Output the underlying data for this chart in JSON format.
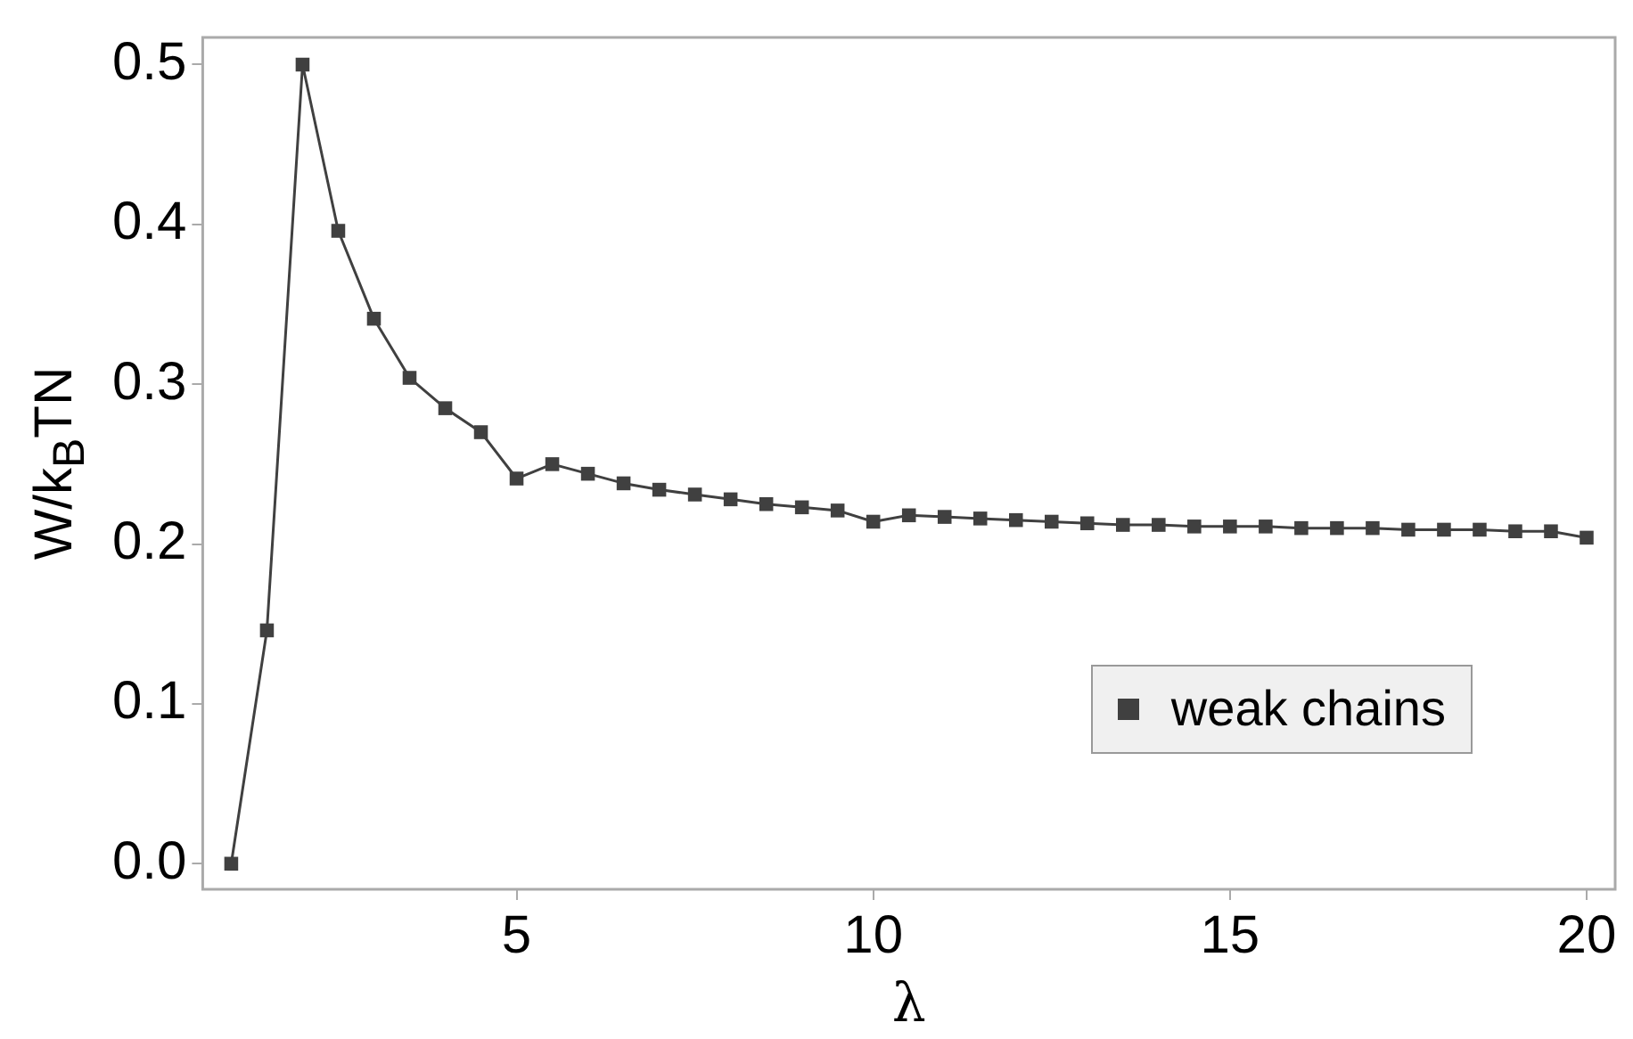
{
  "chart_data": {
    "type": "line",
    "xlabel": "λ",
    "ylabel": "W/k$_{B}$TN",
    "x": [
      1,
      1.5,
      2,
      2.5,
      3,
      3.5,
      4,
      4.5,
      5,
      5.5,
      6,
      6.5,
      7,
      7.5,
      8,
      8.5,
      9,
      9.5,
      10,
      10.5,
      11,
      11.5,
      12,
      12.5,
      13,
      13.5,
      14,
      14.5,
      15,
      15.5,
      16,
      16.5,
      17,
      17.5,
      18,
      18.5,
      19,
      19.5,
      20
    ],
    "series": [
      {
        "name": "weak chains",
        "color": "#404040",
        "values": [
          0,
          0.146,
          0.5,
          0.396,
          0.341,
          0.304,
          0.285,
          0.27,
          0.241,
          0.25,
          0.244,
          0.238,
          0.234,
          0.231,
          0.228,
          0.225,
          0.223,
          0.221,
          0.214,
          0.218,
          0.217,
          0.216,
          0.215,
          0.214,
          0.213,
          0.212,
          0.212,
          0.211,
          0.211,
          0.211,
          0.21,
          0.21,
          0.21,
          0.209,
          0.209,
          0.209,
          0.208,
          0.208,
          0.204
        ]
      }
    ],
    "xlim": [
      0.6,
      20.4
    ],
    "xticks": [
      5,
      10,
      15,
      20
    ],
    "ylim": [
      -0.016,
      0.517
    ],
    "yticks": [
      {
        "value": 0,
        "label": "0.0"
      },
      0.1,
      0.2,
      0.3,
      0.4,
      0.5
    ],
    "grid": false,
    "legend": "bottom right",
    "marker": "square",
    "line_style": "solid"
  }
}
